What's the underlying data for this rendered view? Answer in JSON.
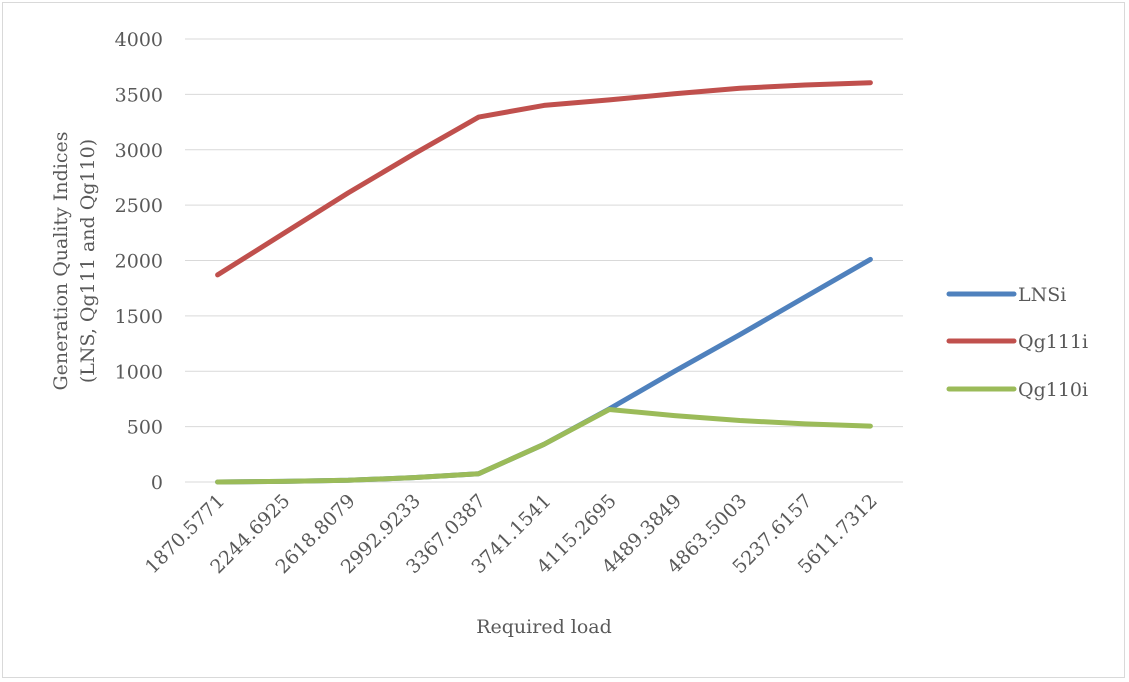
{
  "chart_data": {
    "type": "line",
    "title": "",
    "xlabel": "Required load",
    "ylabel_lines": [
      "Generation Quality Indices",
      "(LNS, Qg111 and Qg110)"
    ],
    "categories": [
      "1870.5771",
      "2244.6925",
      "2618.8079",
      "2992.9233",
      "3367.0387",
      "3741.1541",
      "4115.2695",
      "4489.3849",
      "4863.5003",
      "5237.6157",
      "5611.7312"
    ],
    "ylim": [
      0,
      4000
    ],
    "yticks": [
      "0",
      "500",
      "1000",
      "1500",
      "2000",
      "2500",
      "3000",
      "3500",
      "4000"
    ],
    "grid": true,
    "legend_position": "right",
    "series": [
      {
        "name": "LNSi",
        "color": "#4f81bd",
        "values": [
          0,
          5,
          15,
          40,
          75,
          340,
          660,
          1000,
          1330,
          1670,
          2010
        ]
      },
      {
        "name": "Qg111i",
        "color": "#c0504d",
        "values": [
          1870,
          2240,
          2610,
          2960,
          3295,
          3400,
          3450,
          3505,
          3555,
          3585,
          3605
        ]
      },
      {
        "name": "Qg110i",
        "color": "#9bbb59",
        "values": [
          0,
          5,
          15,
          40,
          75,
          340,
          655,
          600,
          555,
          525,
          505
        ]
      }
    ]
  }
}
